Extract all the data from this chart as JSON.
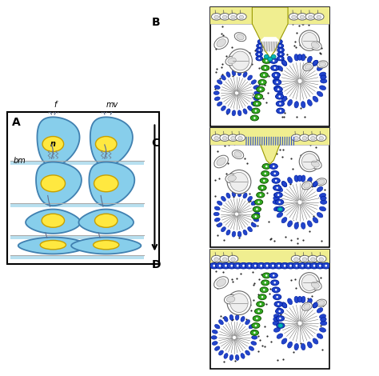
{
  "fig_width": 4.74,
  "fig_height": 4.7,
  "dpi": 100,
  "bg_color": "#ffffff",
  "cell_color": "#87CEEB",
  "cell_outline": "#4080B0",
  "nucleus_color": "#FFE840",
  "nucleus_outline": "#C8A000",
  "arrow_color": "#000000",
  "panel_A_bg": "#ffffff",
  "panel_BCD_bg": "#F0EE90",
  "dot_color": "#333333",
  "blue_cell_color": "#2244CC",
  "green_cell_color": "#33AA22",
  "label_A": "A",
  "label_B": "B",
  "label_C": "C",
  "label_D": "D",
  "label_f": "f",
  "label_mv": "mv",
  "label_n": "n",
  "label_bm": "bm",
  "flagella_color": "#607090",
  "mv_color": "#708090",
  "spicule_color": "#888888",
  "choan_top_body": "#ffffff",
  "choan_top_inner": "#cccccc"
}
